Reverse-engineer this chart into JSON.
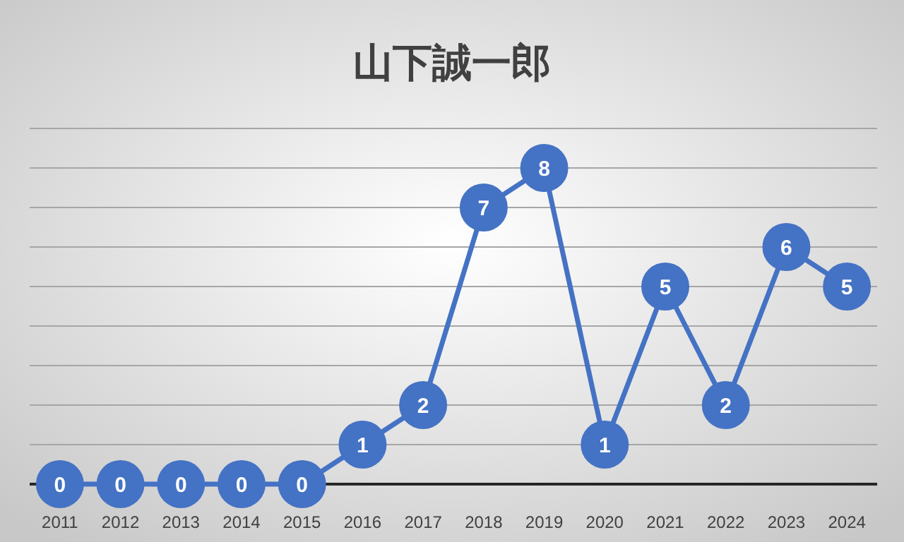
{
  "chart_data": {
    "type": "line",
    "title": "山下誠一郎",
    "categories": [
      "2011",
      "2012",
      "2013",
      "2014",
      "2015",
      "2016",
      "2017",
      "2018",
      "2019",
      "2020",
      "2021",
      "2022",
      "2023",
      "2024"
    ],
    "series": [
      {
        "color": "#4472c4",
        "values": [
          0,
          0,
          0,
          0,
          0,
          1,
          2,
          7,
          8,
          1,
          5,
          2,
          6,
          5
        ]
      }
    ],
    "ylim": [
      0,
      9
    ],
    "yticks": [
      {
        "value": 0,
        "label": null
      },
      {
        "value": 1,
        "label": null
      },
      {
        "value": 2,
        "label": null
      },
      {
        "value": 3,
        "label": null
      },
      {
        "value": 4,
        "label": null
      },
      {
        "value": 5,
        "label": null
      },
      {
        "value": 6,
        "label": null
      },
      {
        "value": 7,
        "label": null
      },
      {
        "value": 8,
        "label": null
      },
      {
        "value": 9,
        "label": null
      }
    ],
    "grid": "y",
    "marker": "circle",
    "line_style": "solid",
    "data_labels": true
  }
}
